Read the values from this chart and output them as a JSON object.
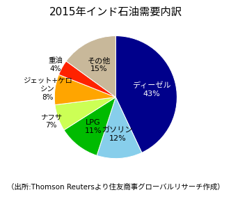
{
  "title": "2015年インド石油需要内訳",
  "label_names": [
    "ディーゼル",
    "ガソリン",
    "LPG",
    "ナフサ",
    "ジェット+ケロ\nシン",
    "重油",
    "その他"
  ],
  "pct_labels": [
    "43%",
    "12%",
    "11%",
    "7%",
    "8%",
    "4%",
    "15%"
  ],
  "values": [
    43,
    12,
    11,
    7,
    8,
    4,
    15
  ],
  "colors": [
    "#00008B",
    "#87CEEB",
    "#00BB00",
    "#CCFF55",
    "#FFA500",
    "#FF2200",
    "#C8B89A"
  ],
  "startangle": 90,
  "footer": "（出所:Thomson Reutersより住友商事グローバルリサーチ作成）",
  "bg_color": "#FFFFFF",
  "title_fontsize": 11,
  "footer_fontsize": 7.5
}
